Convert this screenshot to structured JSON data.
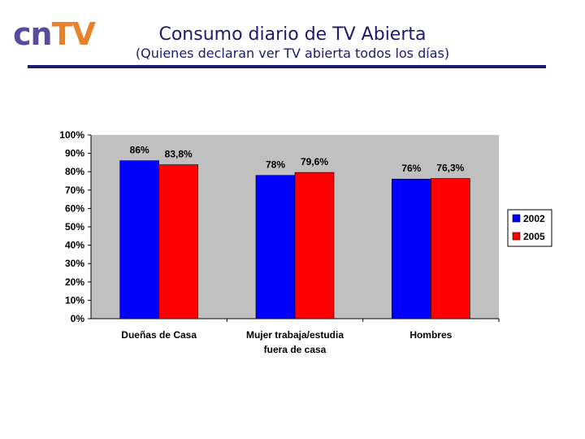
{
  "header": {
    "logo_left": "cn",
    "logo_right": "TV",
    "title": "Consumo diario de TV Abierta",
    "subtitle": "(Quienes declaran ver TV abierta todos los días)"
  },
  "colors": {
    "plot_bg": "#c0c0c0",
    "series_2002": "#0000ff",
    "series_2005": "#ff0000",
    "rule": "#1a1a6e"
  },
  "chart_data": {
    "type": "bar",
    "categories": [
      [
        "Dueñas de Casa"
      ],
      [
        "Mujer trabaja/estudia",
        "fuera de casa"
      ],
      [
        "Hombres"
      ]
    ],
    "series": [
      {
        "name": "2002",
        "values": [
          86,
          78,
          76
        ],
        "labels": [
          "86%",
          "78%",
          "76%"
        ]
      },
      {
        "name": "2005",
        "values": [
          83.8,
          79.6,
          76.3
        ],
        "labels": [
          "83,8%",
          "79,6%",
          "76,3%"
        ]
      }
    ],
    "ylim": [
      0,
      100
    ],
    "yticks": [
      "0%",
      "10%",
      "20%",
      "30%",
      "40%",
      "50%",
      "60%",
      "70%",
      "80%",
      "90%",
      "100%"
    ],
    "legend": "right",
    "grid": false
  }
}
